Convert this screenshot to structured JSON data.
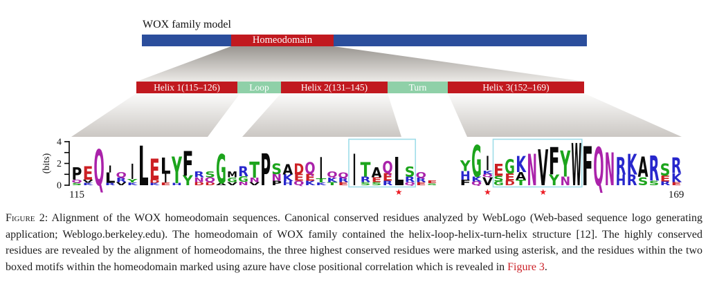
{
  "figure": {
    "model_label": "WOX family model",
    "homeodomain_label": "Homeodomain",
    "helix_segments": [
      {
        "label": "Helix 1(115–126)",
        "type": "helix"
      },
      {
        "label": "Loop",
        "type": "loop"
      },
      {
        "label": "Helix 2(131–145)",
        "type": "helix"
      },
      {
        "label": "Turn",
        "type": "turn"
      },
      {
        "label": "Helix 3(152–169)",
        "type": "helix"
      }
    ],
    "colors": {
      "bar_blue": "#2b4e9c",
      "bar_red": "#c1191f",
      "bar_green": "#8fd0a8",
      "box_azure": "#9edde9",
      "asterisk_red": "#ec1c24"
    }
  },
  "chart_data": {
    "type": "sequence-logo",
    "title": "WOX homeodomain WebLogo alignment",
    "ylabel": "(bits)",
    "ylim": [
      0,
      4
    ],
    "yticks": [
      0,
      1,
      2,
      3,
      4
    ],
    "ytick_labels_shown": {
      "0": "0",
      "2": "2",
      "4": "4"
    },
    "x_start_label": "115",
    "x_end_label": "169",
    "boxes": [
      {
        "from": 140,
        "to": 145
      },
      {
        "from": 153,
        "to": 160
      }
    ],
    "asterisks": [
      144,
      152,
      157
    ],
    "color_scheme": {
      "green": "GSTYC",
      "purple": "QN",
      "blue": "KRH",
      "red": "DE",
      "black": "AVLIPWFM"
    },
    "colors": {
      "green": "#1ca41c",
      "purple": "#aa22aa",
      "blue": "#2727cc",
      "red": "#cc2024",
      "black": "#0a0a0a"
    },
    "positions": [
      {
        "pos": 115,
        "stack": [
          [
            "P",
            1.15
          ],
          [
            "Q",
            0.3
          ],
          [
            "S",
            0.22
          ]
        ]
      },
      {
        "pos": 116,
        "stack": [
          [
            "E",
            1.25
          ],
          [
            "V",
            0.28
          ],
          [
            "K",
            0.22
          ]
        ]
      },
      {
        "pos": 117,
        "stack": [
          [
            "Q",
            3.3
          ]
        ]
      },
      {
        "pos": 118,
        "stack": [
          [
            "I",
            0.6
          ],
          [
            "L",
            0.95
          ],
          [
            "R",
            0.22
          ]
        ]
      },
      {
        "pos": 119,
        "stack": [
          [
            "Q",
            0.5
          ],
          [
            "R",
            0.42
          ],
          [
            "V",
            0.28
          ]
        ]
      },
      {
        "pos": 120,
        "stack": [
          [
            "I",
            1.4
          ],
          [
            "Y",
            0.32
          ],
          [
            "K",
            0.25
          ]
        ]
      },
      {
        "pos": 121,
        "stack": [
          [
            "L",
            3.65
          ]
        ]
      },
      {
        "pos": 122,
        "stack": [
          [
            "E",
            1.95
          ],
          [
            "D",
            0.3
          ],
          [
            "K",
            0.22
          ]
        ]
      },
      {
        "pos": 123,
        "stack": [
          [
            "L",
            1.5
          ],
          [
            "I",
            0.8
          ],
          [
            "E",
            0.25
          ]
        ]
      },
      {
        "pos": 124,
        "stack": [
          [
            "Y",
            2.45
          ],
          [
            "H",
            0.2
          ]
        ]
      },
      {
        "pos": 125,
        "stack": [
          [
            "F",
            2.25
          ],
          [
            "Y",
            0.9
          ]
        ]
      },
      {
        "pos": 126,
        "stack": [
          [
            "R",
            0.55
          ],
          [
            "N",
            0.42
          ],
          [
            "D",
            0.3
          ]
        ]
      },
      {
        "pos": 127,
        "stack": [
          [
            "S",
            0.55
          ],
          [
            "Q",
            0.45
          ],
          [
            "D",
            0.28
          ]
        ]
      },
      {
        "pos": 128,
        "stack": [
          [
            "G",
            2.7
          ],
          [
            "A",
            0.2
          ]
        ]
      },
      {
        "pos": 129,
        "stack": [
          [
            "M",
            0.55
          ],
          [
            "G",
            0.42
          ],
          [
            "V",
            0.3
          ]
        ]
      },
      {
        "pos": 130,
        "stack": [
          [
            "R",
            0.9
          ],
          [
            "G",
            0.5
          ],
          [
            "N",
            0.32
          ]
        ]
      },
      {
        "pos": 131,
        "stack": [
          [
            "T",
            1.5
          ],
          [
            "N",
            0.4
          ],
          [
            "V",
            0.28
          ]
        ]
      },
      {
        "pos": 132,
        "stack": [
          [
            "P",
            2.95
          ]
        ]
      },
      {
        "pos": 133,
        "stack": [
          [
            "S",
            1.0
          ],
          [
            "N",
            0.6
          ],
          [
            "P",
            0.42
          ]
        ]
      },
      {
        "pos": 134,
        "stack": [
          [
            "A",
            0.95
          ],
          [
            "K",
            0.6
          ],
          [
            "H",
            0.38
          ]
        ]
      },
      {
        "pos": 135,
        "stack": [
          [
            "D",
            1.0
          ],
          [
            "E",
            0.62
          ],
          [
            "Q",
            0.4
          ]
        ]
      },
      {
        "pos": 136,
        "stack": [
          [
            "Q",
            1.05
          ],
          [
            "E",
            0.62
          ],
          [
            "K",
            0.42
          ]
        ]
      },
      {
        "pos": 137,
        "stack": [
          [
            "I",
            2.0
          ],
          [
            "T",
            0.35
          ],
          [
            "K",
            0.25
          ]
        ]
      },
      {
        "pos": 138,
        "stack": [
          [
            "Q",
            0.55
          ],
          [
            "K",
            0.42
          ],
          [
            "T",
            0.3
          ]
        ]
      },
      {
        "pos": 139,
        "stack": [
          [
            "Q",
            0.5
          ],
          [
            "R",
            0.4
          ],
          [
            "E",
            0.28
          ]
        ]
      },
      {
        "pos": 140,
        "stack": [
          [
            "I",
            2.9
          ]
        ]
      },
      {
        "pos": 141,
        "stack": [
          [
            "T",
            1.3
          ],
          [
            "R",
            0.5
          ],
          [
            "S",
            0.28
          ]
        ]
      },
      {
        "pos": 142,
        "stack": [
          [
            "A",
            0.9
          ],
          [
            "E",
            0.45
          ],
          [
            "S",
            0.28
          ]
        ]
      },
      {
        "pos": 143,
        "stack": [
          [
            "Q",
            1.1
          ],
          [
            "E",
            0.7
          ],
          [
            "R",
            0.4
          ]
        ]
      },
      {
        "pos": 144,
        "stack": [
          [
            "L",
            2.6
          ]
        ]
      },
      {
        "pos": 145,
        "stack": [
          [
            "S",
            0.9
          ],
          [
            "R",
            0.5
          ],
          [
            "Q",
            0.3
          ]
        ]
      },
      {
        "pos": 146,
        "stack": [
          [
            "Q",
            0.55
          ],
          [
            "R",
            0.4
          ],
          [
            "E",
            0.28
          ]
        ]
      },
      {
        "pos": 147,
        "stack": [
          [
            "E",
            0.25
          ],
          [
            "S",
            0.18
          ]
        ]
      },
      {
        "pos": 148,
        "stack": []
      },
      {
        "pos": 149,
        "stack": []
      },
      {
        "pos": 150,
        "stack": [
          [
            "Y",
            1.0
          ],
          [
            "H",
            0.8
          ],
          [
            "F",
            0.5
          ]
        ]
      },
      {
        "pos": 151,
        "stack": [
          [
            "G",
            2.9
          ],
          [
            "K",
            0.45
          ],
          [
            "Q",
            0.35
          ]
        ]
      },
      {
        "pos": 152,
        "stack": [
          [
            "I",
            1.3
          ],
          [
            "K",
            0.32
          ],
          [
            "Q",
            0.28
          ],
          [
            "V",
            0.75
          ]
        ]
      },
      {
        "pos": 153,
        "stack": [
          [
            "E",
            1.1
          ],
          [
            "S",
            0.5
          ],
          [
            "G",
            0.35
          ]
        ]
      },
      {
        "pos": 154,
        "stack": [
          [
            "G",
            1.3
          ],
          [
            "E",
            0.6
          ],
          [
            "D",
            0.45
          ]
        ]
      },
      {
        "pos": 155,
        "stack": [
          [
            "K",
            1.5
          ],
          [
            "A",
            0.7
          ],
          [
            "T",
            0.5
          ]
        ]
      },
      {
        "pos": 156,
        "stack": [
          [
            "N",
            2.9
          ]
        ]
      },
      {
        "pos": 157,
        "stack": [
          [
            "V",
            3.3
          ]
        ]
      },
      {
        "pos": 158,
        "stack": [
          [
            "F",
            2.5
          ],
          [
            "Y",
            1.0
          ]
        ]
      },
      {
        "pos": 159,
        "stack": [
          [
            "Y",
            2.4
          ],
          [
            "N",
            0.8
          ]
        ]
      },
      {
        "pos": 160,
        "stack": [
          [
            "W",
            3.9
          ]
        ]
      },
      {
        "pos": 161,
        "stack": [
          [
            "F",
            3.6
          ]
        ]
      },
      {
        "pos": 162,
        "stack": [
          [
            "Q",
            3.5
          ]
        ]
      },
      {
        "pos": 163,
        "stack": [
          [
            "N",
            3.0
          ]
        ]
      },
      {
        "pos": 164,
        "stack": [
          [
            "R",
            1.6
          ],
          [
            "H",
            1.0
          ]
        ]
      },
      {
        "pos": 165,
        "stack": [
          [
            "K",
            1.9
          ],
          [
            "R",
            1.0
          ]
        ]
      },
      {
        "pos": 166,
        "stack": [
          [
            "A",
            1.85
          ],
          [
            "S",
            0.75
          ]
        ]
      },
      {
        "pos": 167,
        "stack": [
          [
            "R",
            2.3
          ],
          [
            "S",
            0.4
          ]
        ]
      },
      {
        "pos": 168,
        "stack": [
          [
            "S",
            1.1
          ],
          [
            "E",
            0.55
          ],
          [
            "R",
            0.35
          ]
        ]
      },
      {
        "pos": 169,
        "stack": [
          [
            "R",
            1.45
          ],
          [
            "K",
            0.8
          ],
          [
            "E",
            0.3
          ]
        ]
      }
    ]
  },
  "caption": {
    "fig_label": "Figure 2:",
    "body": " Alignment of the WOX homeodomain sequences. Canonical conserved residues analyzed by WebLogo (Web-based sequence logo generating application; Weblogo.berkeley.edu). The homeodomain of WOX family contained the helix-loop-helix-turn-helix structure [12]. The highly conserved residues are revealed by the alignment of homeodomains, the three highest conserved residues were marked using asterisk, and the residues within the two boxed motifs within the homeodomain marked using azure have close positional correlation which is revealed in ",
    "link_text": "Figure 3",
    "after_link": ".",
    "link_color": "#cc2128"
  }
}
